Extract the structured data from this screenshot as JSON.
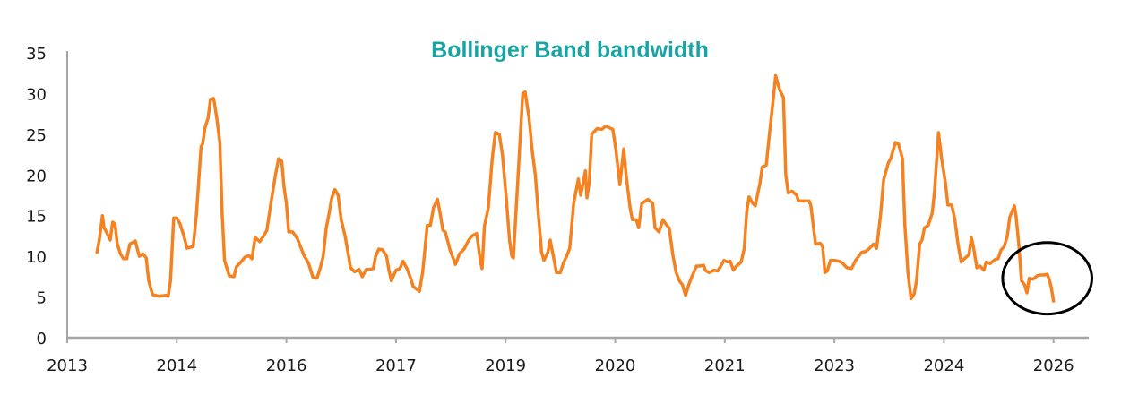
{
  "chart_data": {
    "type": "line",
    "title": "Bollinger Band bandwidth",
    "xlabel": "",
    "ylabel": "",
    "ylim": [
      0,
      35
    ],
    "yticks": [
      0,
      5,
      10,
      15,
      20,
      25,
      30,
      35
    ],
    "xlim": [
      2013.5,
      2026.55
    ],
    "xticks": [
      {
        "value": 2013.5,
        "label": "2013"
      },
      {
        "value": 2014.9,
        "label": "2014"
      },
      {
        "value": 2016.3,
        "label": "2016"
      },
      {
        "value": 2017.7,
        "label": "2017"
      },
      {
        "value": 2019.1,
        "label": "2019"
      },
      {
        "value": 2020.5,
        "label": "2020"
      },
      {
        "value": 2021.9,
        "label": "2021"
      },
      {
        "value": 2023.3,
        "label": "2023"
      },
      {
        "value": 2024.7,
        "label": "2024"
      },
      {
        "value": 2026.1,
        "label": "2026"
      }
    ],
    "grid": false,
    "legend": "none",
    "colors": {
      "line": "#f58220",
      "title": "#1aa3a3",
      "axis": "#a6a6a6",
      "annotation": "#000000"
    },
    "annotation": {
      "shape": "ellipse",
      "center": [
        2026.02,
        7.3
      ],
      "radius_x_years": 0.57,
      "radius_y_value": 4.4
    },
    "series": [
      {
        "x": [
          2013.88,
          2013.91,
          2013.95,
          2013.97,
          2014.0,
          2014.05,
          2014.08,
          2014.11,
          2014.14,
          2014.18,
          2014.22,
          2014.26,
          2014.3,
          2014.37,
          2014.42,
          2014.47,
          2014.51,
          2014.54,
          2014.59,
          2014.67,
          2014.76,
          2014.79,
          2014.82,
          2014.86,
          2014.9,
          2014.94,
          2014.99,
          2015.03,
          2015.07,
          2015.11,
          2015.15,
          2015.21,
          2015.23,
          2015.26,
          2015.3,
          2015.33,
          2015.37,
          2015.41,
          2015.45,
          2015.48,
          2015.51,
          2015.57,
          2015.63,
          2015.66,
          2015.72,
          2015.77,
          2015.82,
          2015.86,
          2015.9,
          2015.96,
          2016.01,
          2016.05,
          2016.11,
          2016.16,
          2016.2,
          2016.24,
          2016.27,
          2016.3,
          2016.33,
          2016.38,
          2016.44,
          2016.48,
          2016.53,
          2016.58,
          2016.64,
          2016.69,
          2016.73,
          2016.77,
          2016.81,
          2016.84,
          2016.88,
          2016.92,
          2016.96,
          2017.0,
          2017.05,
          2017.09,
          2017.12,
          2017.17,
          2017.23,
          2017.27,
          2017.32,
          2017.37,
          2017.41,
          2017.44,
          2017.48,
          2017.53,
          2017.58,
          2017.61,
          2017.64,
          2017.7,
          2017.75,
          2017.79,
          2017.84,
          2017.88,
          2017.92,
          2018.0,
          2018.04,
          2018.1,
          2018.14,
          2018.18,
          2018.23,
          2018.26,
          2018.3,
          2018.33,
          2018.39,
          2018.46,
          2018.51,
          2018.57,
          2018.63,
          2018.67,
          2018.73,
          2018.78,
          2018.8,
          2018.83,
          2018.88,
          2018.93,
          2018.97,
          2019.02,
          2019.06,
          2019.11,
          2019.15,
          2019.18,
          2019.2,
          2019.26,
          2019.32,
          2019.35,
          2019.4,
          2019.44,
          2019.48,
          2019.52,
          2019.56,
          2019.59,
          2019.64,
          2019.67,
          2019.72,
          2019.75,
          2019.8,
          2019.84,
          2019.88,
          2019.92,
          2019.97,
          2020.03,
          2020.06,
          2020.12,
          2020.14,
          2020.17,
          2020.2,
          2020.27,
          2020.33,
          2020.38,
          2020.47,
          2020.51,
          2020.56,
          2020.61,
          2020.64,
          2020.69,
          2020.72,
          2020.77,
          2020.8,
          2020.84,
          2020.92,
          2020.98,
          2021.01,
          2021.06,
          2021.11,
          2021.16,
          2021.19,
          2021.24,
          2021.28,
          2021.32,
          2021.36,
          2021.4,
          2021.44,
          2021.48,
          2021.54,
          2021.58,
          2021.63,
          2021.65,
          2021.7,
          2021.76,
          2021.81,
          2021.85,
          2021.89,
          2021.94,
          2021.97,
          2022.01,
          2022.05,
          2022.11,
          2022.15,
          2022.18,
          2022.21,
          2022.26,
          2022.29,
          2022.35,
          2022.38,
          2022.43,
          2022.46,
          2022.51,
          2022.55,
          2022.6,
          2022.65,
          2022.68,
          2022.71,
          2022.76,
          2022.82,
          2022.84,
          2022.91,
          2022.98,
          2023.0,
          2023.06,
          2023.12,
          2023.15,
          2023.18,
          2023.21,
          2023.25,
          2023.3,
          2023.36,
          2023.4,
          2023.46,
          2023.52,
          2023.57,
          2023.65,
          2023.7,
          2023.75,
          2023.8,
          2023.84,
          2023.89,
          2023.93,
          2023.99,
          2024.02,
          2024.08,
          2024.12,
          2024.17,
          2024.2,
          2024.24,
          2024.28,
          2024.32,
          2024.35,
          2024.39,
          2024.42,
          2024.45,
          2024.5,
          2024.55,
          2024.58,
          2024.63,
          2024.67,
          2024.72,
          2024.75,
          2024.8,
          2024.84,
          2024.88,
          2024.92,
          2024.97,
          2025.02,
          2025.05,
          2025.08,
          2025.12,
          2025.16,
          2025.21,
          2025.24,
          2025.29,
          2025.35,
          2025.39,
          2025.43,
          2025.47,
          2025.51,
          2025.54,
          2025.6,
          2025.62,
          2025.66,
          2025.69,
          2025.73,
          2025.76,
          2025.79,
          2025.84,
          2025.89,
          2025.93,
          2025.98,
          2026.02,
          2026.05,
          2026.07,
          2026.1
        ],
        "values": [
          10.5,
          12,
          15,
          13.5,
          13,
          12,
          14.2,
          14,
          11.5,
          10.3,
          9.7,
          9.7,
          11.5,
          11.9,
          10,
          10.3,
          9.8,
          7,
          5.3,
          5.1,
          5.2,
          5.1,
          7,
          14.7,
          14.7,
          14,
          12.5,
          11,
          11.1,
          11.2,
          15,
          23.5,
          23.8,
          25.8,
          27,
          29.3,
          29.4,
          27,
          24,
          15,
          9.5,
          7.6,
          7.5,
          8.7,
          9.3,
          9.9,
          10.1,
          9.7,
          12.3,
          11.8,
          12.5,
          13.2,
          17,
          20,
          22,
          21.7,
          18.5,
          16.5,
          13,
          13,
          12.2,
          11.2,
          10,
          9.2,
          7.4,
          7.3,
          8.5,
          10,
          13.5,
          15,
          17.2,
          18.2,
          17.5,
          14.5,
          12.5,
          10.3,
          8.6,
          8.1,
          8.4,
          7.5,
          8.4,
          8.4,
          8.5,
          10,
          10.9,
          10.8,
          10,
          8.3,
          7,
          8.3,
          8.5,
          9.4,
          8.5,
          7.5,
          6.3,
          5.7,
          8,
          13.8,
          13.8,
          16,
          17,
          15.5,
          13.2,
          13,
          10.8,
          9,
          10.3,
          10.9,
          12,
          12.5,
          12.8,
          9.3,
          8.5,
          13.7,
          16,
          22,
          25.2,
          25,
          22.5,
          17,
          12,
          10,
          9.8,
          20,
          30,
          30.2,
          27,
          23,
          20,
          15,
          10.5,
          9.5,
          10.5,
          12,
          9.5,
          8,
          8,
          9.2,
          10,
          11,
          16.5,
          19.5,
          17.5,
          20.5,
          17.2,
          19.2,
          25,
          25.7,
          25.6,
          26,
          25.6,
          23,
          18.8,
          23.2,
          20,
          16,
          14.5,
          14.5,
          13.5,
          16.5,
          17,
          16.5,
          13.5,
          13,
          14.5,
          13.8,
          13.5,
          10,
          8,
          7,
          6.5,
          5.2,
          6.5,
          7.5,
          8.8,
          8.8,
          8.9,
          8.3,
          8,
          8.3,
          8.2,
          8.8,
          9.5,
          9.3,
          9.4,
          8.3,
          8.8,
          9.3,
          11,
          15.5,
          17.3,
          16.5,
          16.2,
          19,
          21,
          21.2,
          24,
          28.5,
          32.2,
          30.5,
          29.5,
          20,
          17.8,
          18,
          17.5,
          16.8,
          16.8,
          16.8,
          16.2,
          11.5,
          11.6,
          11.2,
          8,
          8.2,
          9.5,
          9.5,
          9.4,
          9.2,
          8.6,
          8.5,
          9.5,
          10.5,
          10.6,
          11,
          11.5,
          11,
          15,
          19.4,
          21.5,
          22,
          24,
          23.8,
          22,
          14,
          8,
          4.8,
          5.4,
          7,
          11.5,
          12,
          13.5,
          13.8,
          15.3,
          18,
          25.2,
          22,
          19,
          16.3,
          16.3,
          14.5,
          11.5,
          9.3,
          9.8,
          10.2,
          12.3,
          11,
          8.6,
          8.8,
          8.3,
          9.3,
          9.1,
          9.6,
          9.7,
          10.8,
          11.2,
          12.5,
          14.8,
          16.2,
          15,
          11,
          7,
          6.5,
          5.5,
          7.3,
          7.2,
          7.6,
          7.7,
          7.7,
          7.8,
          7,
          6.2,
          4.5
        ]
      }
    ]
  }
}
